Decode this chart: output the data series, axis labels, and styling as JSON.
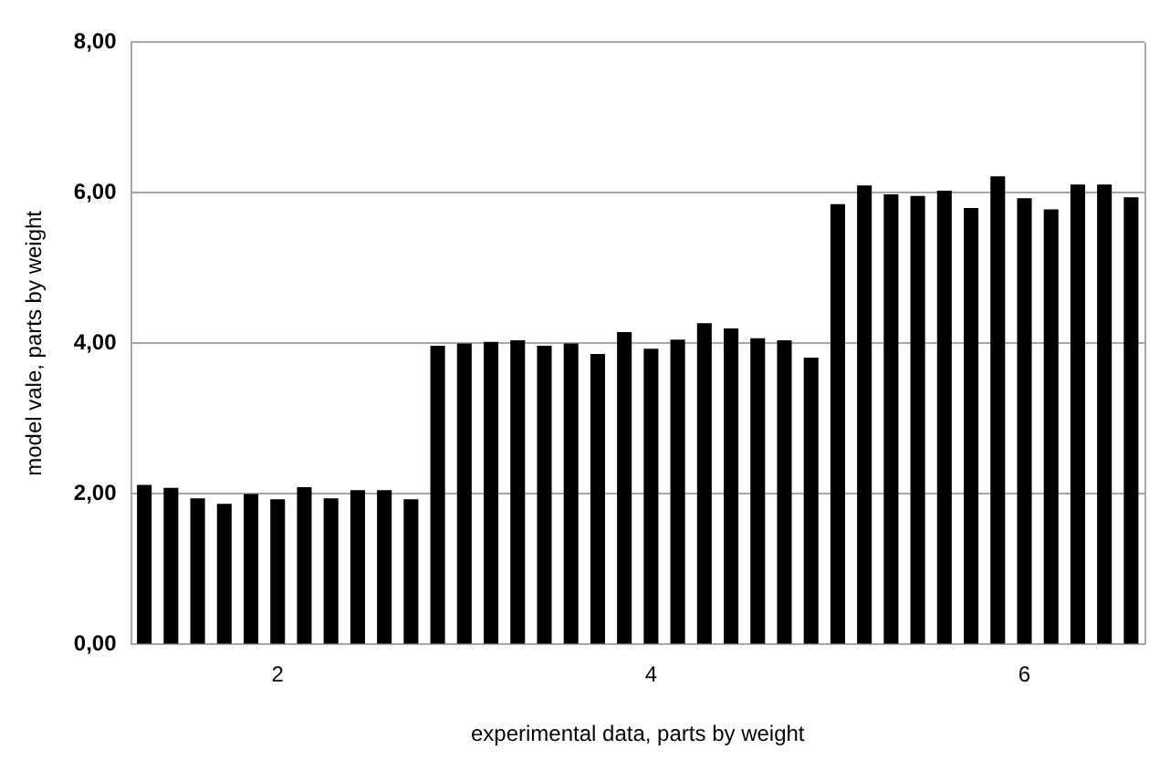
{
  "chart_data": {
    "type": "bar",
    "xlabel": "experimental data, parts by weight",
    "ylabel": "model vale, parts by weight",
    "categories": [
      null,
      null,
      null,
      null,
      null,
      "2",
      null,
      null,
      null,
      null,
      null,
      null,
      null,
      null,
      null,
      null,
      null,
      null,
      null,
      "4",
      null,
      null,
      null,
      null,
      null,
      null,
      null,
      null,
      null,
      null,
      null,
      null,
      null,
      "6",
      null,
      null,
      null,
      null
    ],
    "values": [
      2.12,
      2.08,
      1.94,
      1.87,
      2.0,
      1.93,
      2.09,
      1.94,
      2.05,
      2.05,
      1.93,
      3.97,
      4.0,
      4.02,
      4.04,
      3.97,
      4.0,
      3.86,
      4.15,
      3.93,
      4.05,
      4.27,
      4.2,
      4.07,
      4.04,
      3.81,
      5.85,
      6.1,
      5.98,
      5.96,
      6.03,
      5.8,
      6.22,
      5.93,
      5.78,
      6.11,
      6.11,
      5.94
    ],
    "color": "#000000",
    "ylim": [
      0,
      8
    ],
    "yticks": [
      {
        "value": 0,
        "label": "0,00"
      },
      {
        "value": 2,
        "label": "2,00"
      },
      {
        "value": 4,
        "label": "4,00"
      },
      {
        "value": 6,
        "label": "6,00"
      },
      {
        "value": 8,
        "label": "8,00"
      }
    ],
    "grid": "y",
    "legend": false
  }
}
